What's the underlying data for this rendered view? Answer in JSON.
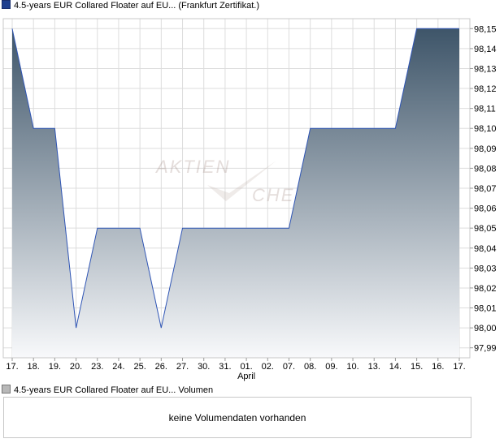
{
  "chart_data": {
    "type": "area",
    "title": "4.5-years EUR Collared Floater auf EU... (Frankfurt Zertifikat.)",
    "x": [
      "17.",
      "18.",
      "19.",
      "20.",
      "23.",
      "24.",
      "25.",
      "26.",
      "27.",
      "30.",
      "31.",
      "01.",
      "02.",
      "07.",
      "08.",
      "09.",
      "10.",
      "13.",
      "14.",
      "15.",
      "16.",
      "17."
    ],
    "month_label": "April",
    "month_label_at": "01.",
    "series": [
      {
        "name": "4.5-years EUR Collared Floater auf EU... (Frankfurt Zertifikat.)",
        "values": [
          98.15,
          98.1,
          98.1,
          98.0,
          98.05,
          98.05,
          98.05,
          98.0,
          98.05,
          98.05,
          98.05,
          98.05,
          98.05,
          98.05,
          98.1,
          98.1,
          98.1,
          98.1,
          98.1,
          98.15,
          98.15,
          98.15
        ]
      }
    ],
    "y_ticks": [
      "97,99",
      "98,00",
      "98,01",
      "98,02",
      "98,03",
      "98,04",
      "98,05",
      "98,06",
      "98,07",
      "98,08",
      "98,09",
      "98,10",
      "98,11",
      "98,12",
      "98,13",
      "98,14",
      "98,15"
    ],
    "ylim": [
      97.985,
      98.155
    ],
    "grid": true,
    "watermark": "AKTIEN CHECK",
    "colors": {
      "line": "#2f55b5",
      "fill_top": "#3e5569",
      "fill_bottom": "#f8f9fb",
      "grid": "#dddddd"
    }
  },
  "volume": {
    "legend_label": "4.5-years EUR Collared Floater auf EU... Volumen",
    "message": "keine Volumendaten vorhanden"
  }
}
